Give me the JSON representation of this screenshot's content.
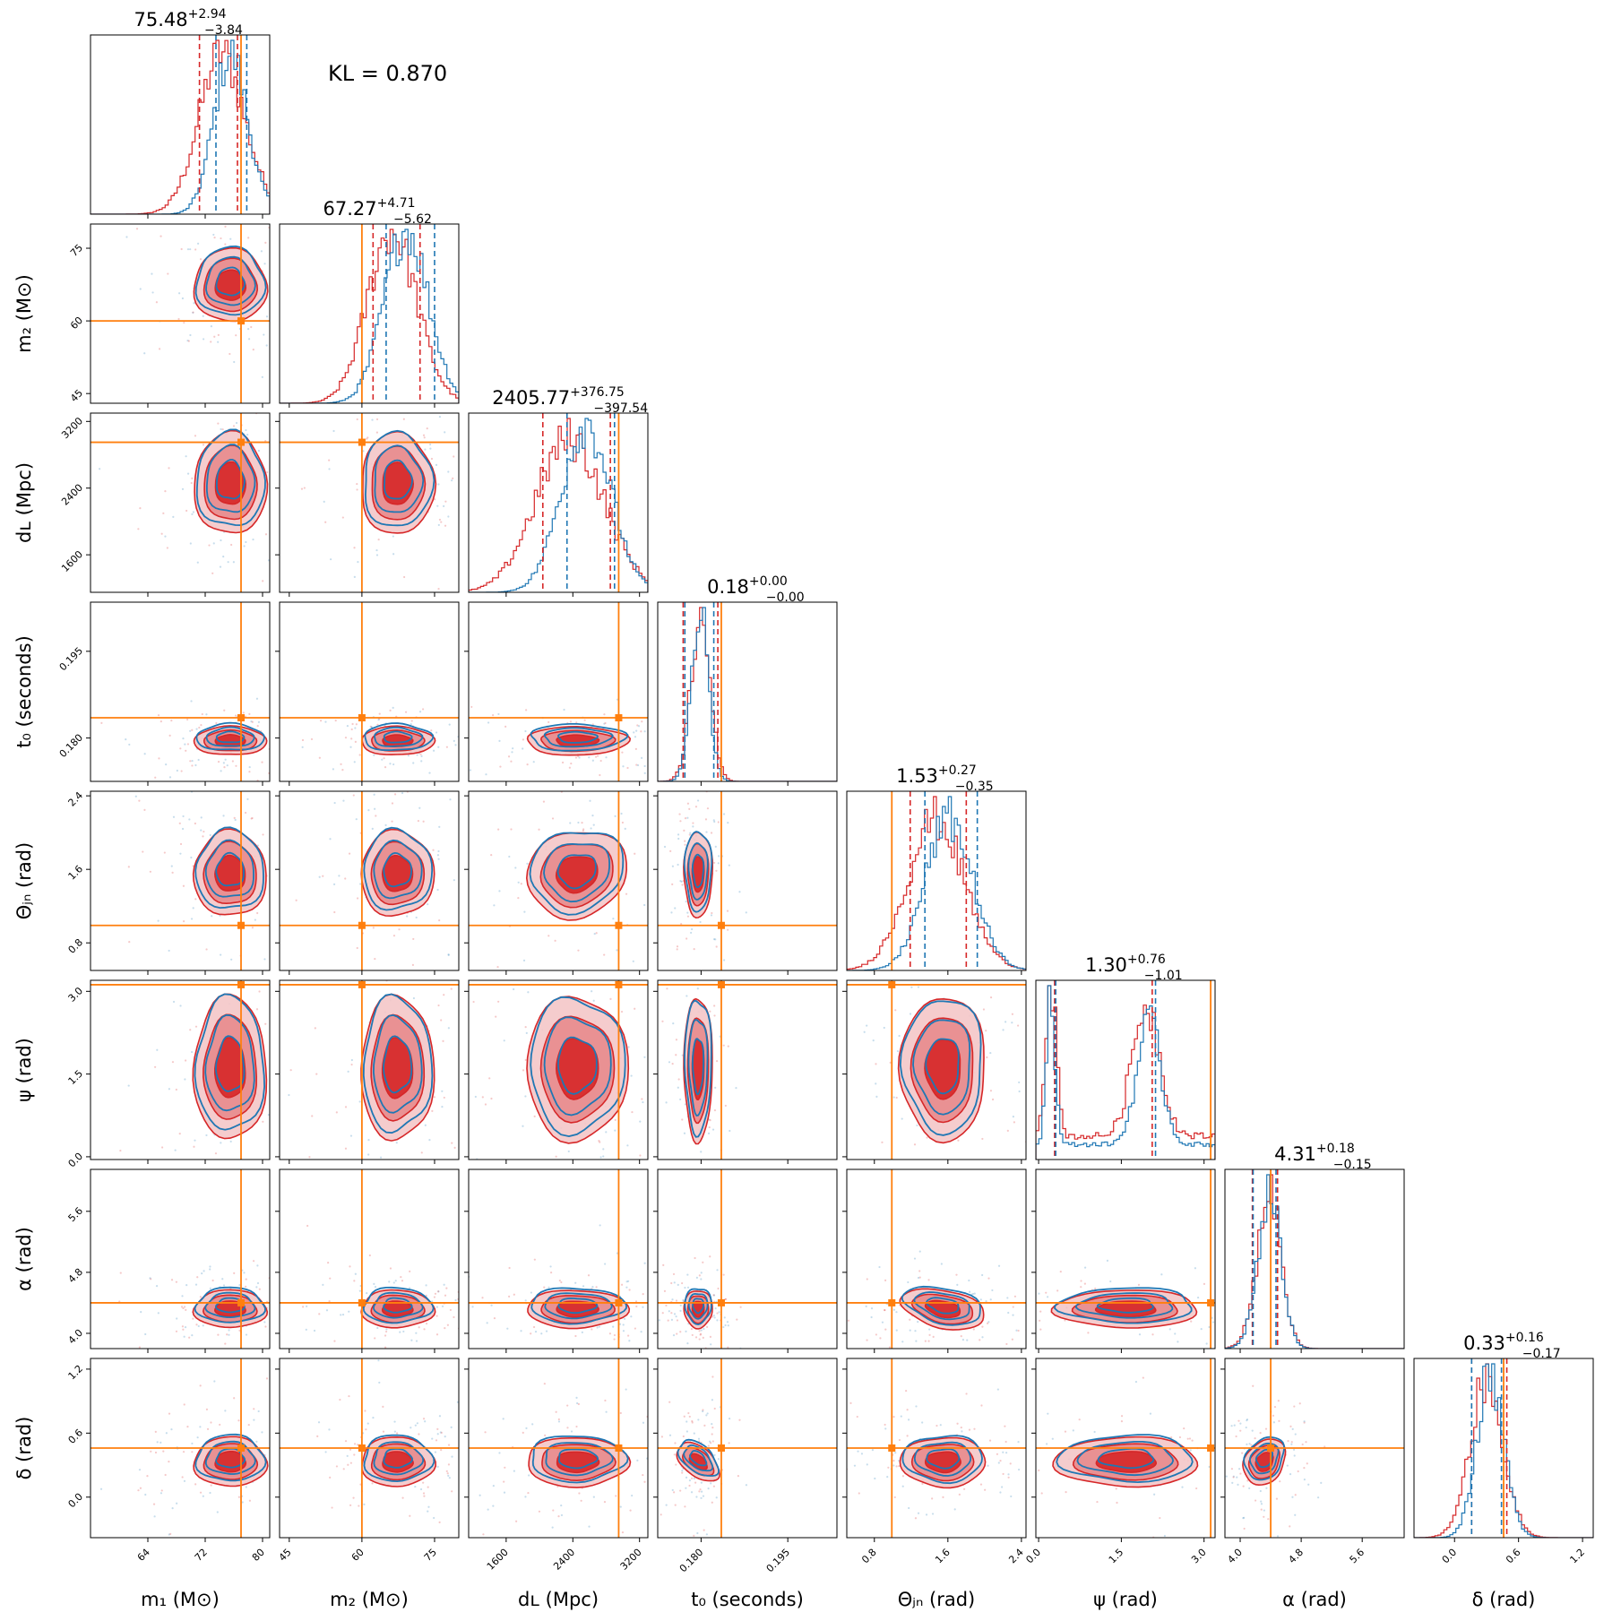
{
  "chart_data": {
    "type": "corner",
    "annotation": "KL = 0.870",
    "colors": {
      "series_a": "#d62728",
      "series_b": "#1f77b4",
      "truth": "#ff7f0e"
    },
    "parameters": [
      {
        "key": "m1",
        "label": "m₁ (M⊙)",
        "range": [
          56,
          81
        ],
        "ticks": [
          64,
          72,
          80
        ],
        "tick_labels": [
          "64",
          "72",
          "80"
        ],
        "truth": 77.0,
        "title": {
          "median": "75.48",
          "plus": "+2.94",
          "minus": "−3.84"
        },
        "red_quantiles": [
          71.2,
          76.5
        ],
        "blue_quantiles": [
          73.5,
          77.8
        ],
        "red_median": 76.5,
        "blue_median": 77.0
      },
      {
        "key": "m2",
        "label": "m₂ (M⊙)",
        "range": [
          43,
          80
        ],
        "ticks": [
          45,
          60,
          75
        ],
        "tick_labels": [
          "45",
          "60",
          "75"
        ],
        "truth": 60.0,
        "title": {
          "median": "67.27",
          "plus": "+4.71",
          "minus": "−5.62"
        },
        "red_quantiles": [
          62.3,
          72.0
        ],
        "blue_quantiles": [
          65.0,
          75.0
        ],
        "red_median": 72.0,
        "blue_median": 75.0
      },
      {
        "key": "dL",
        "label": "dʟ (Mpc)",
        "range": [
          1150,
          3300
        ],
        "ticks": [
          1600,
          2400,
          3200
        ],
        "tick_labels": [
          "1600",
          "2400",
          "3200"
        ],
        "truth": 2950,
        "title": {
          "median": "2405.77",
          "plus": "+376.75",
          "minus": "−397.54"
        },
        "red_quantiles": [
          2040,
          2850
        ],
        "blue_quantiles": [
          2330,
          2900
        ],
        "red_median": 2850,
        "blue_median": 2900
      },
      {
        "key": "t0",
        "label": "t₀ (seconds)",
        "range": [
          0.1725,
          0.2035
        ],
        "ticks": [
          0.18,
          0.195
        ],
        "tick_labels": [
          "0.180",
          "0.195"
        ],
        "truth": 0.1835,
        "title": {
          "median": "0.18",
          "plus": "+0.00",
          "minus": "−0.00"
        },
        "red_quantiles": [
          0.1769,
          0.1829
        ],
        "blue_quantiles": [
          0.1772,
          0.1822
        ],
        "red_median": 0.1829,
        "blue_median": 0.1822
      },
      {
        "key": "theta_jn",
        "label": "Θⱼₙ (rad)",
        "range": [
          0.5,
          2.45
        ],
        "ticks": [
          0.8,
          1.6,
          2.4
        ],
        "tick_labels": [
          "0.8",
          "1.6",
          "2.4"
        ],
        "truth": 0.99,
        "title": {
          "median": "1.53",
          "plus": "+0.27",
          "minus": "−0.35"
        },
        "red_quantiles": [
          1.19,
          1.8
        ],
        "blue_quantiles": [
          1.35,
          1.92
        ],
        "red_median": 1.8,
        "blue_median": 1.92
      },
      {
        "key": "psi",
        "label": "ψ (rad)",
        "range": [
          -0.05,
          3.2
        ],
        "ticks": [
          0.0,
          1.5,
          3.0
        ],
        "tick_labels": [
          "0.0",
          "1.5",
          "3.0"
        ],
        "truth": 3.12,
        "title": {
          "median": "1.30",
          "plus": "+0.76",
          "minus": "−1.01"
        },
        "red_quantiles": [
          0.29,
          2.06
        ],
        "blue_quantiles": [
          0.31,
          2.12
        ],
        "red_median": 2.06,
        "blue_median": 2.12
      },
      {
        "key": "alpha",
        "label": "α (rad)",
        "range": [
          3.8,
          6.15
        ],
        "ticks": [
          4.0,
          4.8,
          5.6
        ],
        "tick_labels": [
          "4.0",
          "4.8",
          "5.6"
        ],
        "truth": 4.4,
        "title": {
          "median": "4.31",
          "plus": "+0.18",
          "minus": "−0.15"
        },
        "red_quantiles": [
          4.16,
          4.49
        ],
        "blue_quantiles": [
          4.17,
          4.47
        ],
        "red_median": 4.49,
        "blue_median": 4.47
      },
      {
        "key": "delta",
        "label": "δ (rad)",
        "range": [
          -0.38,
          1.3
        ],
        "ticks": [
          0.0,
          0.6,
          1.2
        ],
        "tick_labels": [
          "0.0",
          "0.6",
          "1.2"
        ],
        "truth": 0.46,
        "title": {
          "median": "0.33",
          "plus": "+0.16",
          "minus": "−0.17"
        },
        "red_quantiles": [
          0.16,
          0.49
        ],
        "blue_quantiles": [
          0.16,
          0.44
        ],
        "red_median": 0.49,
        "blue_median": 0.44
      }
    ],
    "marginals": {
      "m1": {
        "red": {
          "mu": 75.5,
          "sd": 3.5,
          "skew": -0.6
        },
        "blue": {
          "mu": 76.3,
          "sd": 2.5,
          "skew": -0.5
        }
      },
      "m2": {
        "red": {
          "mu": 67.3,
          "sd": 5.2,
          "skew": -0.3
        },
        "blue": {
          "mu": 69.8,
          "sd": 4.6,
          "skew": -0.2
        }
      },
      "dL": {
        "red": {
          "mu": 2450,
          "sd": 420,
          "skew": -0.3
        },
        "blue": {
          "mu": 2600,
          "sd": 300,
          "skew": -0.2
        }
      },
      "t0": {
        "red": {
          "mu": 0.1795,
          "sd": 0.0017,
          "skew": 0.4
        },
        "blue": {
          "mu": 0.1795,
          "sd": 0.0015,
          "skew": 0.3
        }
      },
      "theta_jn": {
        "red": {
          "mu": 1.55,
          "sd": 0.32,
          "skew": -0.4
        },
        "blue": {
          "mu": 1.68,
          "sd": 0.27,
          "skew": -0.4
        }
      },
      "psi": {
        "red": {
          "modes": [
            [
              0.22,
              0.1,
              1.0
            ],
            [
              1.95,
              0.25,
              0.85
            ]
          ],
          "floor": 0.15
        },
        "blue": {
          "modes": [
            [
              0.22,
              0.08,
              1.0
            ],
            [
              2.0,
              0.22,
              0.8
            ]
          ],
          "floor": 0.1
        }
      },
      "alpha": {
        "red": {
          "mu": 4.32,
          "sd": 0.17,
          "skew": 0.7
        },
        "blue": {
          "mu": 4.33,
          "sd": 0.16,
          "skew": 0.6
        }
      },
      "delta": {
        "red": {
          "mu": 0.33,
          "sd": 0.16,
          "skew": -0.3
        },
        "blue": {
          "mu": 0.36,
          "sd": 0.13,
          "skew": -0.3
        }
      }
    }
  }
}
